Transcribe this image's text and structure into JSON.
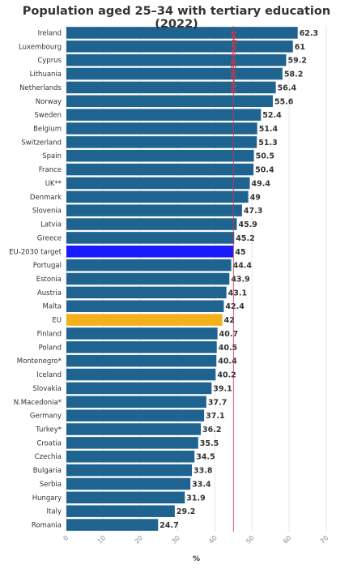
{
  "chart_data": {
    "type": "bar",
    "orientation": "horizontal",
    "title": "Population aged 25–34 with tertiary education (2022)",
    "xlabel": "%",
    "xlim": [
      0,
      70
    ],
    "xticks": [
      0,
      10,
      20,
      30,
      40,
      50,
      60,
      70
    ],
    "grid": true,
    "categories": [
      "Ireland",
      "Luxembourg",
      "Cyprus",
      "Lithuania",
      "Netherlands",
      "Norway",
      "Sweden",
      "Belgium",
      "Switzerland",
      "Spain",
      "France",
      "UK**",
      "Denmark",
      "Slovenia",
      "Latvia",
      "Greece",
      "EU-2030 target",
      "Portugal",
      "Estonia",
      "Austria",
      "Malta",
      "EU",
      "Finland",
      "Poland",
      "Montenegro*",
      "Iceland",
      "Slovakia",
      "N.Macedonia*",
      "Germany",
      "Turkey*",
      "Croatia",
      "Czechia",
      "Bulgaria",
      "Serbia",
      "Hungary",
      "Italy",
      "Romania"
    ],
    "values": [
      62.3,
      61,
      59.2,
      58.2,
      56.4,
      55.6,
      52.4,
      51.4,
      51.3,
      50.5,
      50.4,
      49.4,
      49,
      47.3,
      45.9,
      45.2,
      45,
      44.4,
      43.9,
      43.1,
      42.4,
      42,
      40.7,
      40.5,
      40.4,
      40.2,
      39.1,
      37.7,
      37.1,
      36.2,
      35.5,
      34.5,
      33.8,
      33.4,
      31.9,
      29.2,
      24.7
    ],
    "reference_line": {
      "value": 45,
      "label": "EU-2030 target"
    },
    "colors": {
      "default": "#1f6391",
      "highlight_target": "#1a1aff",
      "highlight_eu": "#f2b11b",
      "reference": "#c8384b"
    },
    "highlights": {
      "EU-2030 target": "highlight_target",
      "EU": "highlight_eu"
    }
  }
}
